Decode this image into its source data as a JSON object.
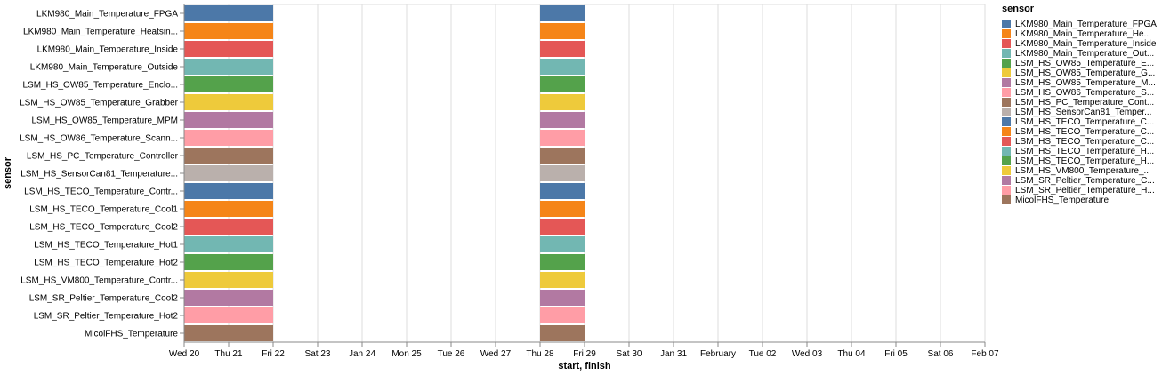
{
  "chart_data": {
    "type": "bar",
    "subtype": "gantt",
    "xlabel": "start, finish",
    "ylabel": "sensor",
    "xlim": [
      "2021-01-20",
      "2021-02-07"
    ],
    "x_tick_labels": [
      "Wed 20",
      "Thu 21",
      "Fri 22",
      "Sat 23",
      "Jan 24",
      "Mon 25",
      "Tue 26",
      "Wed 27",
      "Thu 28",
      "Fri 29",
      "Sat 30",
      "Jan 31",
      "February",
      "Tue 02",
      "Wed 03",
      "Thu 04",
      "Fri 05",
      "Sat 06",
      "Feb 07"
    ],
    "grid": true,
    "legend_title": "sensor",
    "legend_position": "right",
    "categories": [
      "LKM980_Main_Temperature_FPGA",
      "LKM980_Main_Temperature_Heatsin...",
      "LKM980_Main_Temperature_Inside",
      "LKM980_Main_Temperature_Outside",
      "LSM_HS_OW85_Temperature_Enclo...",
      "LSM_HS_OW85_Temperature_Grabber",
      "LSM_HS_OW85_Temperature_MPM",
      "LSM_HS_OW86_Temperature_Scann...",
      "LSM_HS_PC_Temperature_Controller",
      "LSM_HS_SensorCan81_Temperature...",
      "LSM_HS_TECO_Temperature_Contr...",
      "LSM_HS_TECO_Temperature_Cool1",
      "LSM_HS_TECO_Temperature_Cool2",
      "LSM_HS_TECO_Temperature_Hot1",
      "LSM_HS_TECO_Temperature_Hot2",
      "LSM_HS_VM800_Temperature_Contr...",
      "LSM_SR_Peltier_Temperature_Cool2",
      "LSM_SR_Peltier_Temperature_Hot2",
      "MicolFHS_Temperature"
    ],
    "colors": [
      "#4c78a8",
      "#f58518",
      "#e45756",
      "#72b7b2",
      "#54a24b",
      "#eeca3b",
      "#b279a2",
      "#ff9da6",
      "#9d755d",
      "#bab0ac",
      "#4c78a8",
      "#f58518",
      "#e45756",
      "#72b7b2",
      "#54a24b",
      "#eeca3b",
      "#b279a2",
      "#ff9da6",
      "#9d755d"
    ],
    "intervals": [
      {
        "start": "2021-01-20",
        "finish": "2021-01-22"
      },
      {
        "start": "2021-01-28",
        "finish": "2021-01-29"
      }
    ],
    "legend": [
      {
        "label": "LKM980_Main_Temperature_FPGA",
        "color": "#4c78a8"
      },
      {
        "label": "LKM980_Main_Temperature_He...",
        "color": "#f58518"
      },
      {
        "label": "LKM980_Main_Temperature_Inside",
        "color": "#e45756"
      },
      {
        "label": "LKM980_Main_Temperature_Out...",
        "color": "#72b7b2"
      },
      {
        "label": "LSM_HS_OW85_Temperature_E...",
        "color": "#54a24b"
      },
      {
        "label": "LSM_HS_OW85_Temperature_G...",
        "color": "#eeca3b"
      },
      {
        "label": "LSM_HS_OW85_Temperature_M...",
        "color": "#b279a2"
      },
      {
        "label": "LSM_HS_OW86_Temperature_S...",
        "color": "#ff9da6"
      },
      {
        "label": "LSM_HS_PC_Temperature_Cont...",
        "color": "#9d755d"
      },
      {
        "label": "LSM_HS_SensorCan81_Temper...",
        "color": "#bab0ac"
      },
      {
        "label": "LSM_HS_TECO_Temperature_C...",
        "color": "#4c78a8"
      },
      {
        "label": "LSM_HS_TECO_Temperature_C...",
        "color": "#f58518"
      },
      {
        "label": "LSM_HS_TECO_Temperature_C...",
        "color": "#e45756"
      },
      {
        "label": "LSM_HS_TECO_Temperature_H...",
        "color": "#72b7b2"
      },
      {
        "label": "LSM_HS_TECO_Temperature_H...",
        "color": "#54a24b"
      },
      {
        "label": "LSM_HS_VM800_Temperature_...",
        "color": "#eeca3b"
      },
      {
        "label": "LSM_SR_Peltier_Temperature_C...",
        "color": "#b279a2"
      },
      {
        "label": "LSM_SR_Peltier_Temperature_H...",
        "color": "#ff9da6"
      },
      {
        "label": "MicolFHS_Temperature",
        "color": "#9d755d"
      }
    ]
  }
}
